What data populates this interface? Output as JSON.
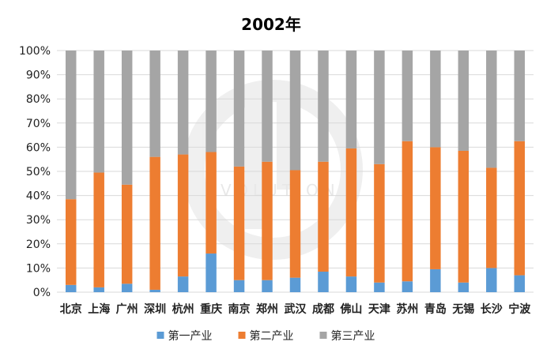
{
  "chart_data": {
    "type": "bar",
    "stacked": "percent",
    "title": "2002年",
    "categories": [
      "北京",
      "上海",
      "广州",
      "深圳",
      "杭州",
      "重庆",
      "南京",
      "郑州",
      "武汉",
      "成都",
      "佛山",
      "天津",
      "苏州",
      "青岛",
      "无锡",
      "长沙",
      "宁波"
    ],
    "series": [
      {
        "name": "第一产业",
        "color": "#5B9BD5",
        "values": [
          3,
          2,
          3.5,
          1,
          6.5,
          16,
          5,
          5,
          6,
          8.5,
          6.5,
          4,
          4.5,
          9.5,
          4,
          10,
          7
        ]
      },
      {
        "name": "第二产业",
        "color": "#ED7D31",
        "values": [
          35.5,
          47.5,
          41,
          55,
          50.5,
          42,
          47,
          49,
          44.5,
          45.5,
          53,
          49,
          58,
          50.5,
          54.5,
          41.5,
          55.5
        ]
      },
      {
        "name": "第三产业",
        "color": "#A5A5A5",
        "values": [
          61.5,
          50.5,
          55.5,
          44,
          43,
          42,
          48,
          46,
          49.5,
          46,
          40.5,
          47,
          37.5,
          40,
          41.5,
          48.5,
          37.5
        ]
      }
    ],
    "yticks": [
      "0%",
      "10%",
      "20%",
      "30%",
      "40%",
      "50%",
      "60%",
      "70%",
      "80%",
      "90%",
      "100%"
    ],
    "ylim": [
      0,
      100
    ],
    "grid": true,
    "legend_position": "bottom",
    "watermark": "EVOLUTION"
  }
}
